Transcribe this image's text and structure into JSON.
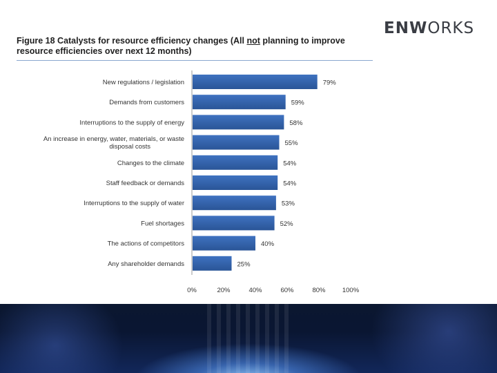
{
  "logo": {
    "bold": "ENW",
    "rest": "ORKS"
  },
  "title": {
    "part1": "Figure 18 Catalysts for resource efficiency changes (All ",
    "underlined": "not",
    "part2": " planning to improve resource efficiencies over next 12 months)"
  },
  "colors": {
    "bar": "#3f72c0",
    "bar_dark": "#2a5597",
    "rule": "#8aa7cf"
  },
  "chart_data": {
    "type": "bar",
    "orientation": "horizontal",
    "categories": [
      "New regulations / legislation",
      "Demands from customers",
      "Interruptions to the supply of energy",
      "An increase in energy, water, materials, or waste disposal costs",
      "Changes to the climate",
      "Staff feedback or demands",
      "Interruptions to the supply of water",
      "Fuel shortages",
      "The actions of competitors",
      "Any shareholder demands"
    ],
    "category_lines": [
      [
        "New regulations / legislation"
      ],
      [
        "Demands from customers"
      ],
      [
        "Interruptions to the supply of energy"
      ],
      [
        "An increase in energy, water, materials, or waste",
        "disposal costs"
      ],
      [
        "Changes to the climate"
      ],
      [
        "Staff feedback or demands"
      ],
      [
        "Interruptions to the supply of water"
      ],
      [
        "Fuel shortages"
      ],
      [
        "The actions of competitors"
      ],
      [
        "Any shareholder demands"
      ]
    ],
    "values": [
      79,
      59,
      58,
      55,
      54,
      54,
      53,
      52,
      40,
      25
    ],
    "data_labels": [
      "79%",
      "59%",
      "58%",
      "55%",
      "54%",
      "54%",
      "53%",
      "52%",
      "40%",
      "25%"
    ],
    "xlim": [
      0,
      100
    ],
    "xticks": [
      0,
      20,
      40,
      60,
      80,
      100
    ],
    "xtick_labels": [
      "0%",
      "20%",
      "40%",
      "60%",
      "80%",
      "100%"
    ],
    "grid": false,
    "legend": "none"
  }
}
